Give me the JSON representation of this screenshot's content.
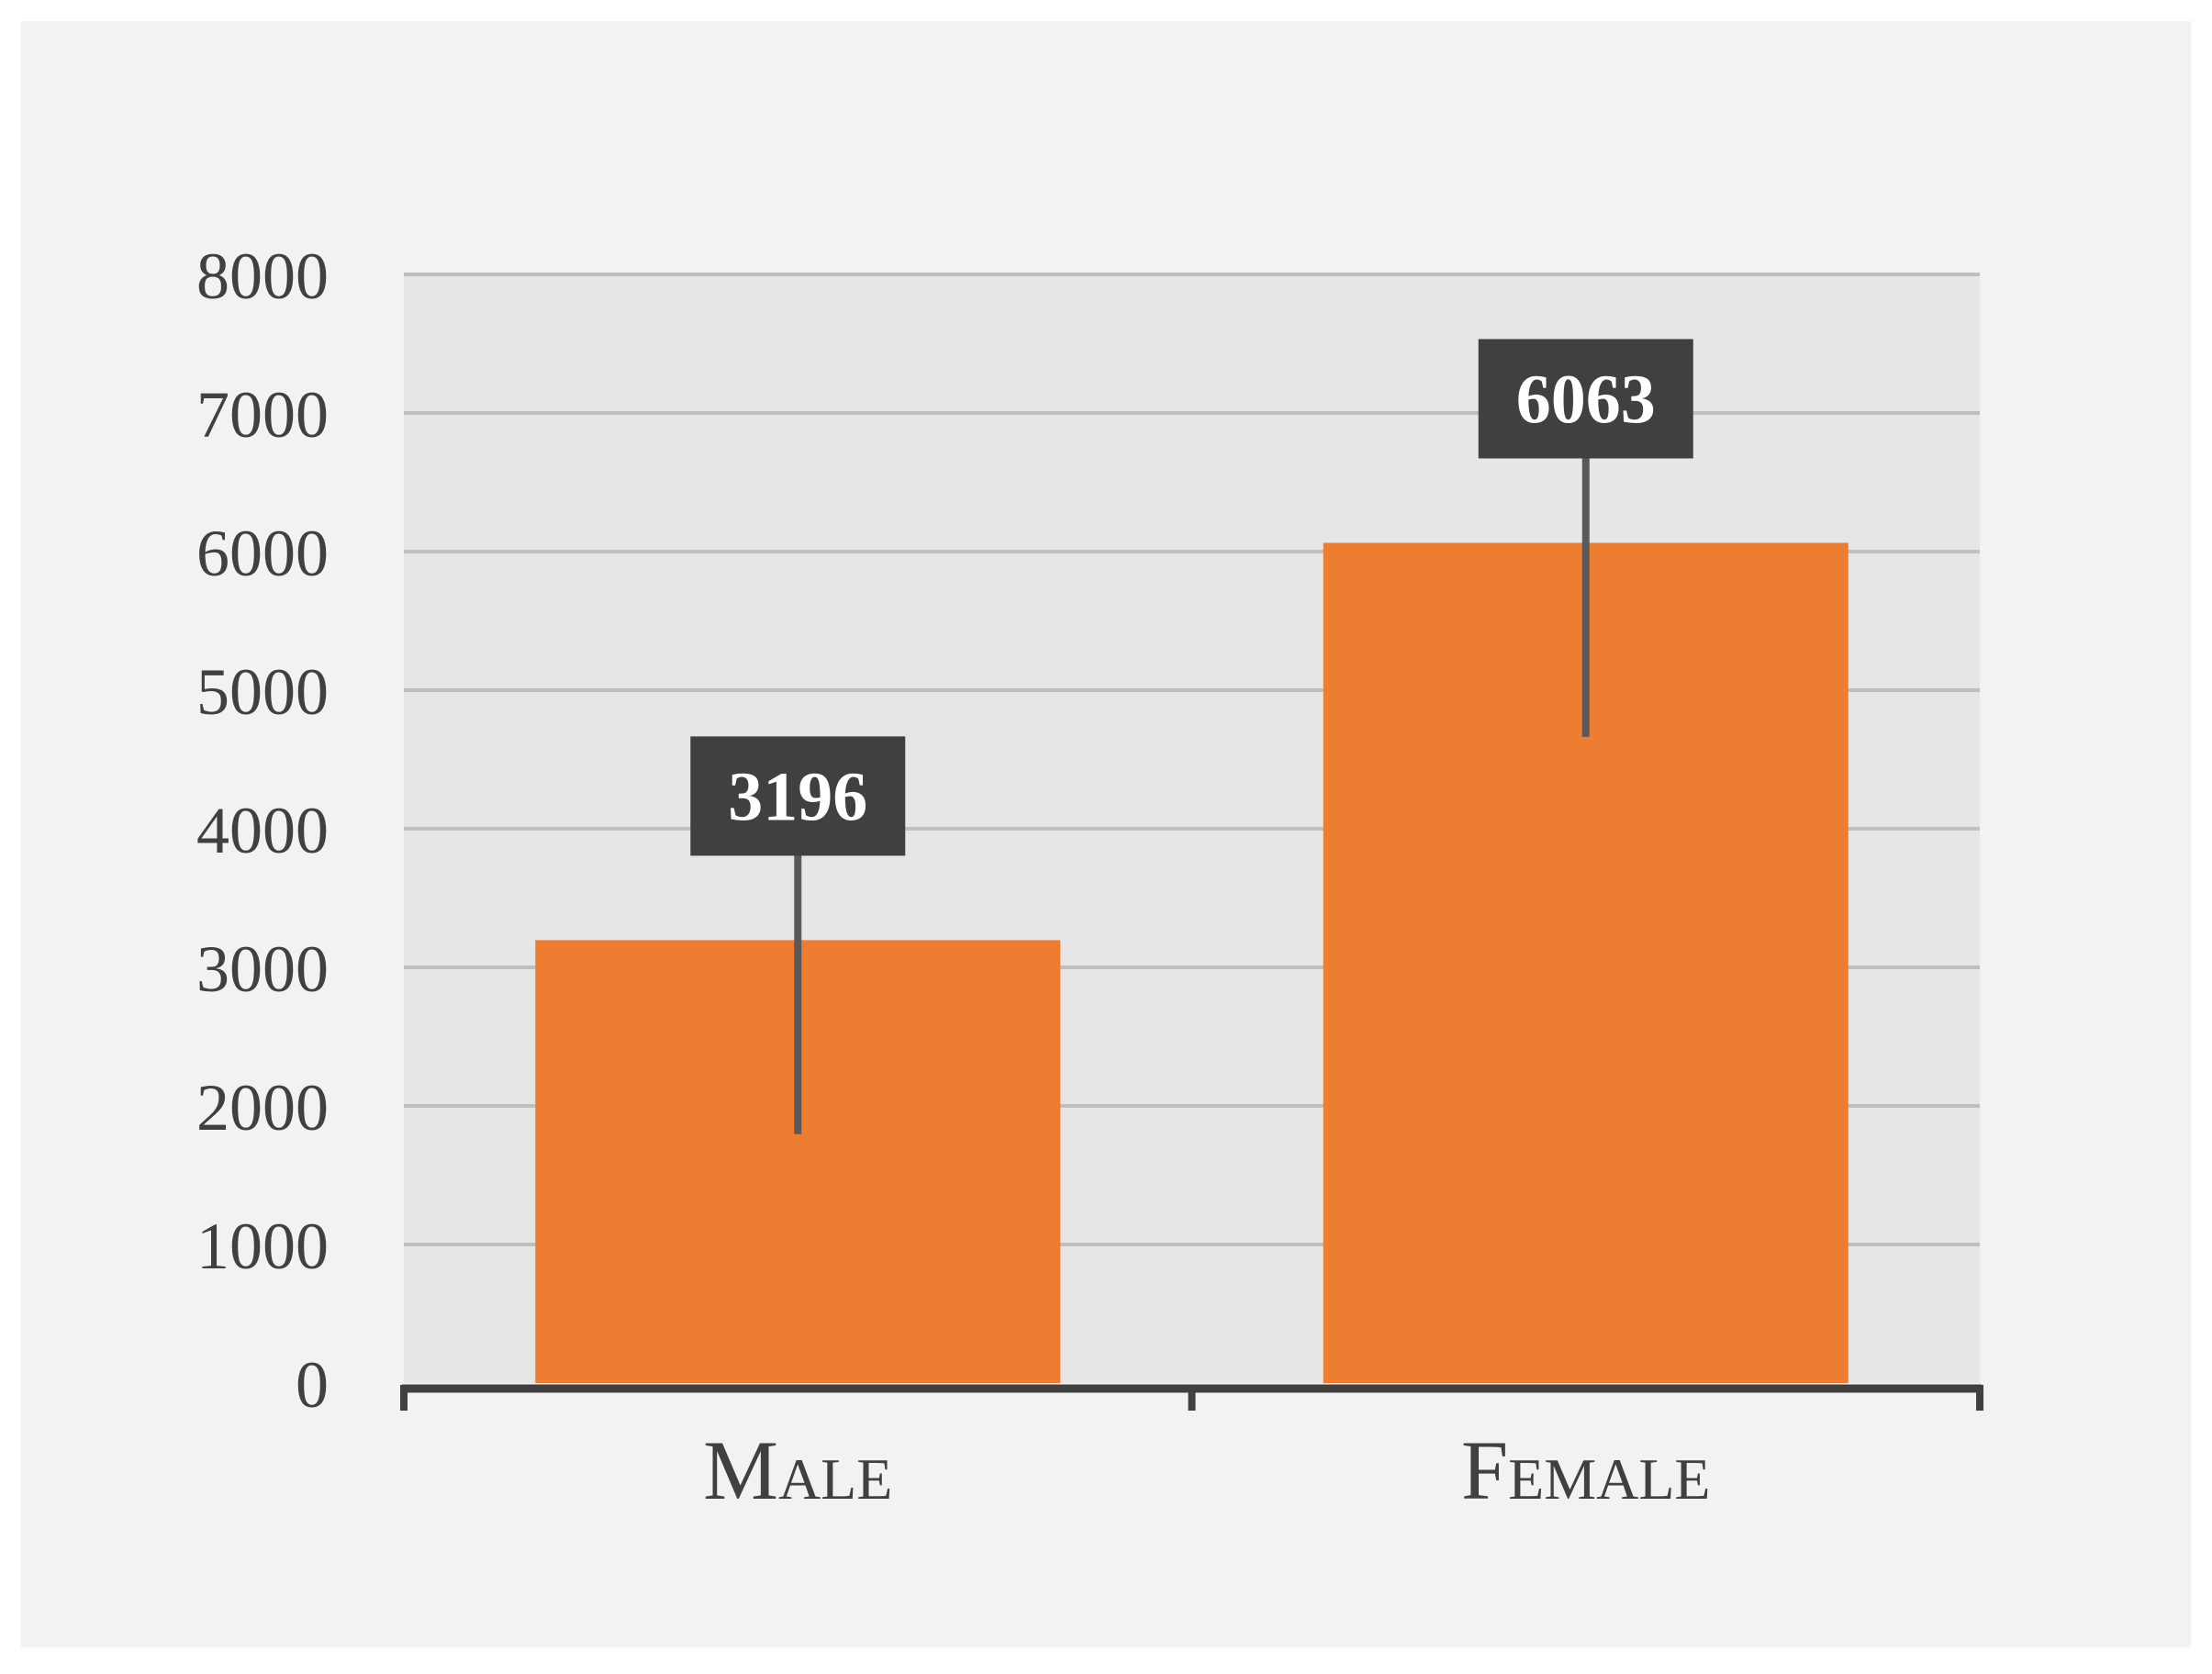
{
  "chart_data": {
    "type": "bar",
    "categories": [
      "Male",
      "Female"
    ],
    "values": [
      3196,
      6063
    ],
    "error_bars": [
      {
        "upper": 3196,
        "lower": 1400
      },
      {
        "upper": 6063,
        "lower": 1400
      }
    ],
    "data_labels": [
      "3196",
      "6063"
    ],
    "title": "",
    "xlabel": "",
    "ylabel": "",
    "ylim": [
      0,
      8000
    ],
    "yticks": [
      0,
      1000,
      2000,
      3000,
      4000,
      5000,
      6000,
      7000,
      8000
    ],
    "grid": true,
    "colors": {
      "bar": "#ed7d31",
      "plot_background": "#e6e6e6",
      "frame_background": "#f2f2f2",
      "gridline": "#bfbfbf",
      "axis": "#404040",
      "label_box": "#404040",
      "error_bar": "#595959"
    }
  }
}
